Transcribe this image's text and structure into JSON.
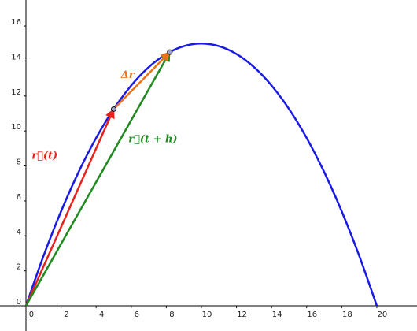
{
  "chart_data": {
    "type": "line",
    "x": [
      0,
      1,
      2,
      3,
      4,
      5,
      6,
      7,
      8,
      9,
      10,
      11,
      12,
      13,
      14,
      15,
      16,
      17,
      18,
      19,
      20
    ],
    "series": [
      {
        "color": "#1a1ae6",
        "values": [
          0,
          2.85,
          5.4,
          7.65,
          9.6,
          11.25,
          12.6,
          13.65,
          14.4,
          14.85,
          15,
          14.85,
          14.4,
          13.65,
          12.6,
          11.25,
          9.6,
          7.65,
          5.4,
          2.85,
          0
        ]
      }
    ],
    "vectors": [
      {
        "label": "r⃗(t)",
        "color": "#e8221c",
        "from": [
          0,
          0
        ],
        "to": [
          5,
          11.25
        ]
      },
      {
        "label": "r⃗(t + h)",
        "color": "#1f8a1f",
        "from": [
          0,
          0
        ],
        "to": [
          8.2,
          14.51
        ]
      },
      {
        "label": "Δr",
        "color": "#e8731c",
        "from": [
          5,
          11.25
        ],
        "to": [
          8.2,
          14.51
        ]
      }
    ],
    "points": [
      [
        5,
        11.25
      ],
      [
        8.2,
        14.51
      ]
    ],
    "xlim": [
      -1.48,
      22.29
    ],
    "ylim": [
      -1.44,
      17.49
    ],
    "xticks": [
      0,
      2,
      4,
      6,
      8,
      10,
      12,
      14,
      16,
      18,
      20
    ],
    "yticks": [
      0,
      2,
      4,
      6,
      8,
      10,
      12,
      14,
      16
    ],
    "grid": false
  }
}
